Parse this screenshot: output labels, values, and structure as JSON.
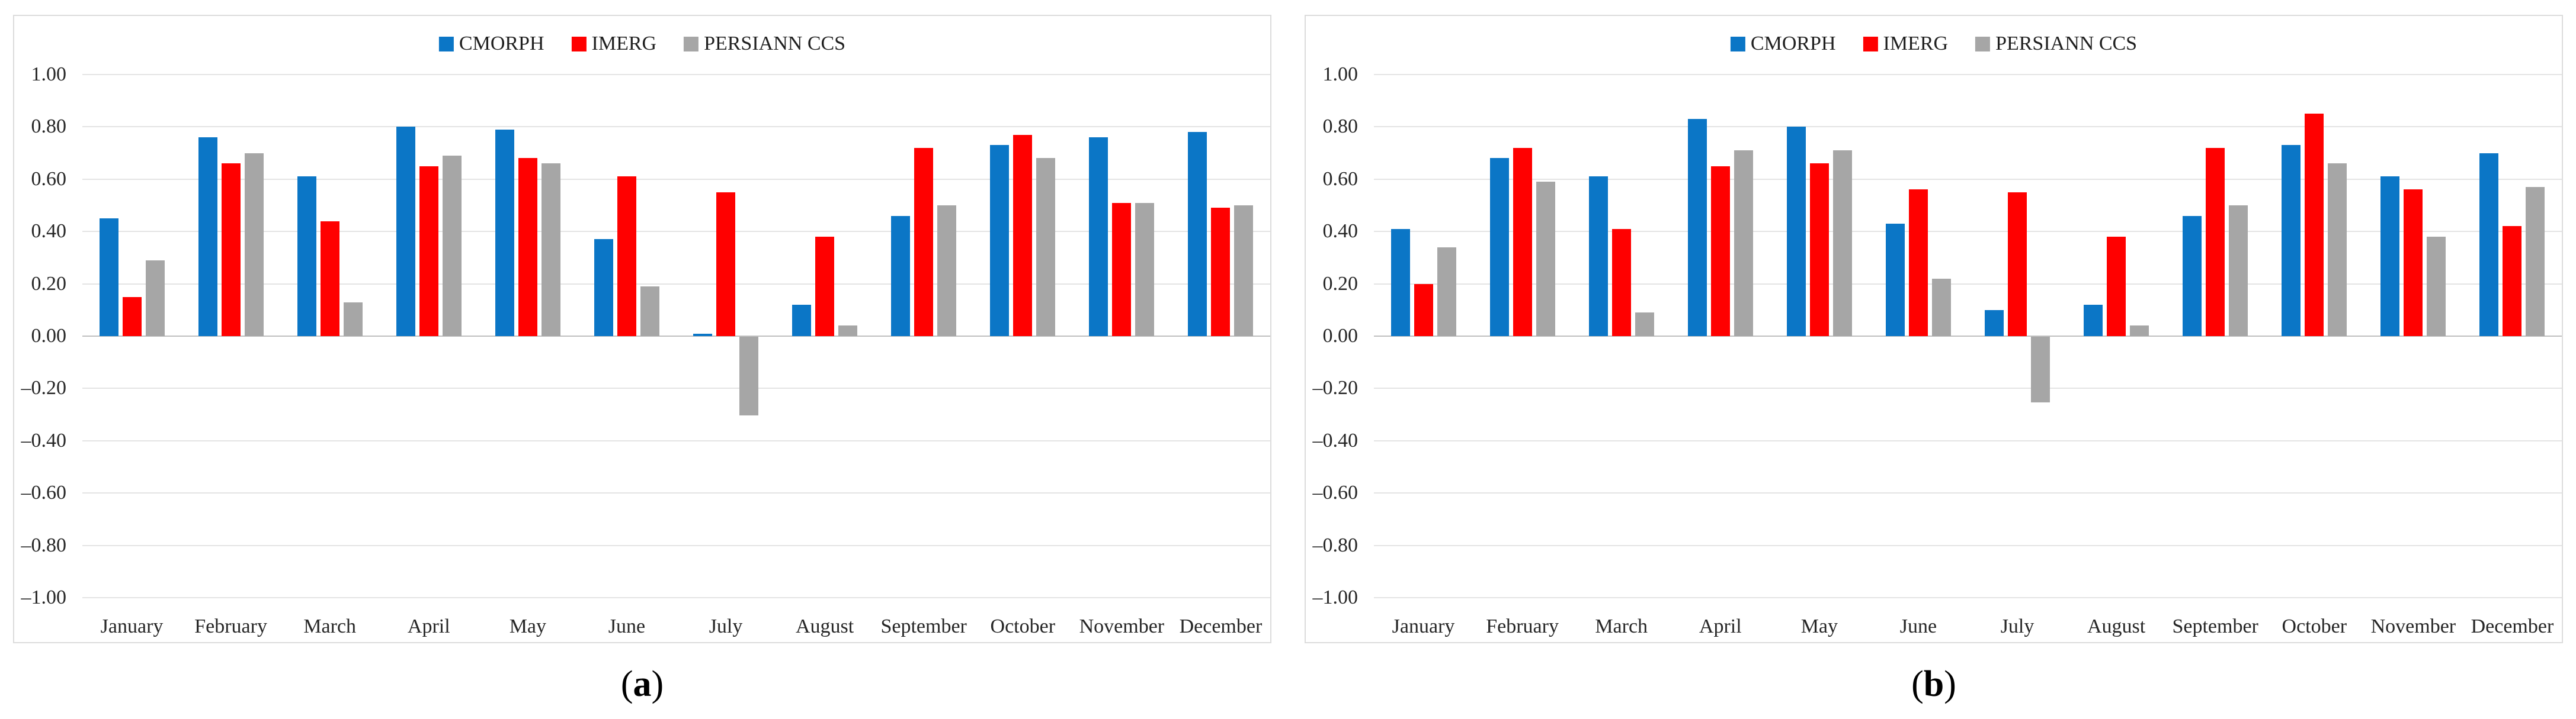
{
  "figure": {
    "background": "#ffffff",
    "panel_border_color": "#dcdcdc",
    "gridline_color": "#e4e4e4",
    "axis_line_color": "#bfbfbf",
    "text_color": "#262626"
  },
  "legend": {
    "position": "top-center",
    "items": [
      {
        "label": "CMORPH",
        "color": "#0b76c6"
      },
      {
        "label": "IMERG",
        "color": "#ff0000"
      },
      {
        "label": "PERSIANN CCS",
        "color": "#a6a6a6"
      }
    ]
  },
  "axis": {
    "ylim": [
      -1.0,
      1.0
    ],
    "tick_step": 0.2,
    "tick_labels": [
      "1.00",
      "0.80",
      "0.60",
      "0.40",
      "0.20",
      "0.00",
      "–0.20",
      "–0.40",
      "–0.60",
      "–0.80",
      "–1.00"
    ],
    "tick_values": [
      1.0,
      0.8,
      0.6,
      0.4,
      0.2,
      0.0,
      -0.2,
      -0.4,
      -0.6,
      -0.8,
      -1.0
    ]
  },
  "chart_data": [
    {
      "type": "bar",
      "caption_paren_open": "(",
      "caption_letter": "a",
      "caption_paren_close": ")",
      "caption": "(a)",
      "categories": [
        "January",
        "February",
        "March",
        "April",
        "May",
        "June",
        "July",
        "August",
        "September",
        "October",
        "November",
        "December"
      ],
      "ylim": [
        -1.0,
        1.0
      ],
      "grid": true,
      "legend_position": "top",
      "series": [
        {
          "name": "CMORPH",
          "color": "#0b76c6",
          "values": [
            0.45,
            0.76,
            0.61,
            0.8,
            0.79,
            0.37,
            0.01,
            0.12,
            0.46,
            0.73,
            0.76,
            0.78
          ]
        },
        {
          "name": "IMERG",
          "color": "#ff0000",
          "values": [
            0.15,
            0.66,
            0.44,
            0.65,
            0.68,
            0.61,
            0.55,
            0.38,
            0.72,
            0.77,
            0.51,
            0.49
          ]
        },
        {
          "name": "PERSIANN CCS",
          "color": "#a6a6a6",
          "values": [
            0.29,
            0.7,
            0.13,
            0.69,
            0.66,
            0.19,
            -0.3,
            0.04,
            0.5,
            0.68,
            0.51,
            0.5
          ]
        }
      ]
    },
    {
      "type": "bar",
      "caption_paren_open": "(",
      "caption_letter": "b",
      "caption_paren_close": ")",
      "caption": "(b)",
      "categories": [
        "January",
        "February",
        "March",
        "April",
        "May",
        "June",
        "July",
        "August",
        "September",
        "October",
        "November",
        "December"
      ],
      "ylim": [
        -1.0,
        1.0
      ],
      "grid": true,
      "legend_position": "top",
      "series": [
        {
          "name": "CMORPH",
          "color": "#0b76c6",
          "values": [
            0.41,
            0.68,
            0.61,
            0.83,
            0.8,
            0.43,
            0.1,
            0.12,
            0.46,
            0.73,
            0.61,
            0.7
          ]
        },
        {
          "name": "IMERG",
          "color": "#ff0000",
          "values": [
            0.2,
            0.72,
            0.41,
            0.65,
            0.66,
            0.56,
            0.55,
            0.38,
            0.72,
            0.85,
            0.56,
            0.42
          ]
        },
        {
          "name": "PERSIANN CCS",
          "color": "#a6a6a6",
          "values": [
            0.34,
            0.59,
            0.09,
            0.71,
            0.71,
            0.22,
            -0.25,
            0.04,
            0.5,
            0.66,
            0.38,
            0.57
          ]
        }
      ]
    }
  ]
}
